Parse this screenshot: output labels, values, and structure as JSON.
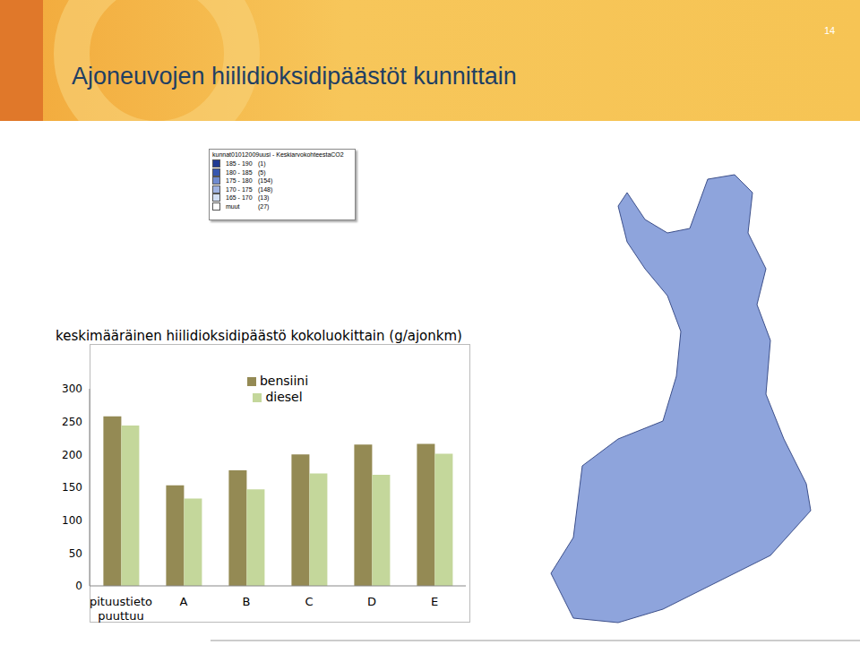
{
  "title": "Ajoneuvojen hiilidioksidipäästöt kunnittain",
  "page_number": "14",
  "map_legend": {
    "title": "kunnat01012009uusi - KeskiarvokohteestaCO2",
    "entries": [
      {
        "label": "185 - 190",
        "count": "(1)",
        "color": "#1f3a93"
      },
      {
        "label": "180 - 185",
        "count": "(5)",
        "color": "#3556b0"
      },
      {
        "label": "175 - 180",
        "count": "(154)",
        "color": "#6f8bd0"
      },
      {
        "label": "170 - 175",
        "count": "(148)",
        "color": "#9fb3e2"
      },
      {
        "label": "165 - 170",
        "count": "(13)",
        "color": "#d3e0f5"
      },
      {
        "label": "muut",
        "count": "(27)",
        "color": "#ffffff"
      }
    ]
  },
  "chart_data": {
    "type": "bar",
    "title": "keskimääräinen hiilidioksidipäästö kokoluokittain (g/ajonkm)",
    "categories": [
      "pituustieto puuttuu",
      "A",
      "B",
      "C",
      "D",
      "E"
    ],
    "series": [
      {
        "name": "bensiini",
        "color": "#948a54",
        "values": [
          258,
          153,
          176,
          200,
          215,
          216
        ]
      },
      {
        "name": "diesel",
        "color": "#c4d79b",
        "values": [
          244,
          133,
          147,
          171,
          169,
          201
        ]
      }
    ],
    "ylim": [
      0,
      300
    ],
    "yticks": [
      0,
      50,
      100,
      150,
      200,
      250,
      300
    ],
    "grid": false,
    "legend": "top"
  }
}
